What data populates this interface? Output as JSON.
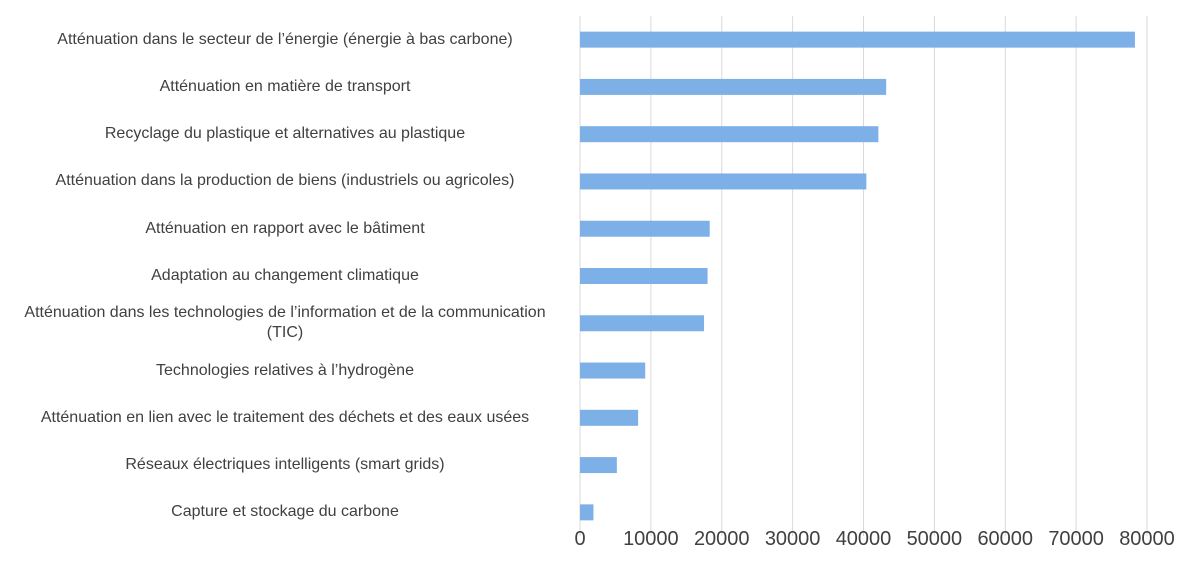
{
  "chart_data": {
    "type": "barh",
    "categories": [
      "Atténuation dans le secteur de l’énergie (énergie à bas carbone)",
      "Atténuation en matière de transport",
      "Recyclage du plastique et alternatives au plastique",
      "Atténuation dans la production de biens (industriels ou agricoles)",
      "Atténuation en rapport avec le bâtiment",
      "Adaptation au changement climatique",
      "Atténuation dans les technologies de l’information et de la communication (TIC)",
      "Technologies relatives à l’hydrogène",
      "Atténuation en lien avec le traitement des déchets et des eaux usées",
      "Réseaux électriques intelligents (smart grids)",
      "Capture et stockage du carbone"
    ],
    "values": [
      78300,
      43200,
      42100,
      40400,
      18300,
      18000,
      17500,
      9200,
      8200,
      5200,
      1900
    ],
    "color": "#7eb0e8",
    "xlim": [
      0,
      80000
    ],
    "xticks": [
      0,
      10000,
      20000,
      30000,
      40000,
      50000,
      60000,
      70000,
      80000
    ],
    "grid": true
  }
}
